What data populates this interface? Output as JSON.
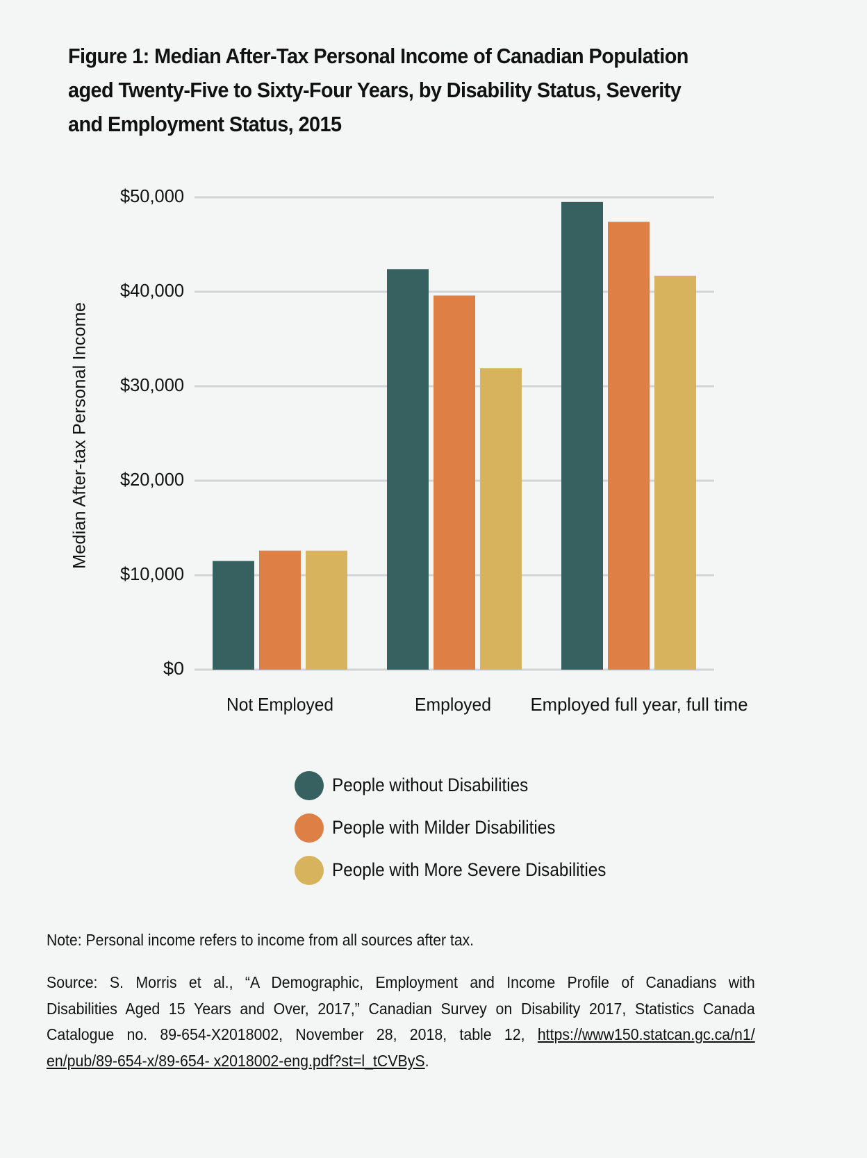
{
  "title": {
    "line1": "Figure 1: Median After-Tax Personal Income of Canadian Population",
    "line2": "aged Twenty-Five to Sixty-Four Years, by Disability Status, Severity",
    "line3": "and Employment Status, 2015"
  },
  "chart_data": {
    "type": "bar",
    "title": "Figure 1: Median After-Tax Personal Income of Canadian Population aged Twenty-Five to Sixty-Four Years, by Disability Status, Severity and Employment Status, 2015",
    "xlabel": "",
    "ylabel": "Median After-tax Personal Income",
    "categories": [
      "Not Employed",
      "Employed",
      "Employed full year, full time"
    ],
    "series": [
      {
        "name": "People without Disabilities",
        "color": "#376160",
        "values": [
          11500,
          42400,
          49500
        ]
      },
      {
        "name": "People with Milder Disabilities",
        "color": "#de8046",
        "values": [
          12600,
          39600,
          47400
        ]
      },
      {
        "name": "People with More Severe Disabilities",
        "color": "#d8b35d",
        "values": [
          12600,
          31900,
          41700
        ]
      }
    ],
    "ylim": [
      0,
      50000
    ],
    "yticks": [
      0,
      10000,
      20000,
      30000,
      40000,
      50000
    ],
    "ytick_labels": [
      "$0",
      "$10,000",
      "$20,000",
      "$30,000",
      "$40,000",
      "$50,000"
    ],
    "grid": true,
    "grid_color": "#d2d3d5",
    "legend_position": "bottom-center"
  },
  "legend": [
    {
      "label": "People without Disabilities",
      "color": "#376160"
    },
    {
      "label": "People with Milder Disabilities",
      "color": "#de8046"
    },
    {
      "label": "People with More Severe Disabilities",
      "color": "#d8b35d"
    }
  ],
  "note": "Note: Personal income refers to income from all sources after tax.",
  "source": {
    "line1": "Source: S. Morris et al., “A Demographic, Employment and Income Profile of Canadians with",
    "line2": "Disabilities Aged 15 Years and Over, 2017,” Canadian Survey on Disability 2017, Statistics Canada",
    "line3_prefix": "Catalogue no. 89-654-X2018002, November 28, 2018, table 12, ",
    "link_part1": "https://www150.statcan.gc.ca/n1/",
    "link_part2": "en/pub/89-654-x/89-654- x2018002-eng.pdf?st=l_tCVByS",
    "line4_suffix": "."
  }
}
